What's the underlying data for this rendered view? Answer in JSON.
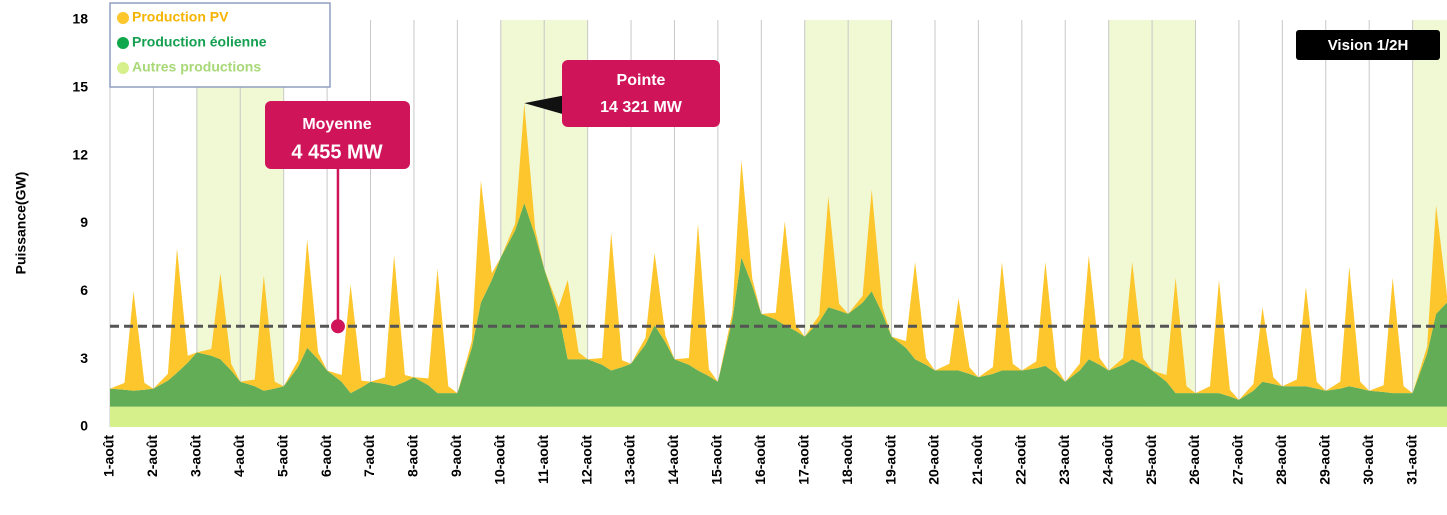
{
  "chart_data": {
    "type": "stacked_area",
    "y_label": "Puissance(GW)",
    "badge": "Vision 1/2H",
    "xlim": [
      1,
      31.792
    ],
    "ylim": [
      0,
      18
    ],
    "yticks": [
      0,
      3,
      6,
      9,
      12,
      15,
      18
    ],
    "xticks": [
      {
        "value": 1,
        "label": "1-août"
      },
      {
        "value": 2,
        "label": "2-août"
      },
      {
        "value": 3,
        "label": "3-août"
      },
      {
        "value": 4,
        "label": "4-août"
      },
      {
        "value": 5,
        "label": "5-août"
      },
      {
        "value": 6,
        "label": "6-août"
      },
      {
        "value": 7,
        "label": "7-août"
      },
      {
        "value": 8,
        "label": "8-août"
      },
      {
        "value": 9,
        "label": "9-août"
      },
      {
        "value": 10,
        "label": "10-août"
      },
      {
        "value": 11,
        "label": "11-août"
      },
      {
        "value": 12,
        "label": "12-août"
      },
      {
        "value": 13,
        "label": "13-août"
      },
      {
        "value": 14,
        "label": "14-août"
      },
      {
        "value": 15,
        "label": "15-août"
      },
      {
        "value": 16,
        "label": "16-août"
      },
      {
        "value": 17,
        "label": "17-août"
      },
      {
        "value": 18,
        "label": "18-août"
      },
      {
        "value": 19,
        "label": "19-août"
      },
      {
        "value": 20,
        "label": "20-août"
      },
      {
        "value": 21,
        "label": "21-août"
      },
      {
        "value": 22,
        "label": "22-août"
      },
      {
        "value": 23,
        "label": "23-août"
      },
      {
        "value": 24,
        "label": "24-août"
      },
      {
        "value": 25,
        "label": "25-août"
      },
      {
        "value": 26,
        "label": "26-août"
      },
      {
        "value": 27,
        "label": "27-août"
      },
      {
        "value": 28,
        "label": "28-août"
      },
      {
        "value": 29,
        "label": "29-août"
      },
      {
        "value": 30,
        "label": "30-août"
      },
      {
        "value": 31,
        "label": "31-août"
      }
    ],
    "x_grid": true,
    "shaded_ranges": [
      [
        3,
        5
      ],
      [
        10,
        12
      ],
      [
        17,
        19
      ],
      [
        24,
        26
      ],
      [
        31,
        31.792
      ]
    ],
    "shade_color": "#f0f8d4",
    "mean": {
      "label": "Moyenne",
      "value": 4.455,
      "value_label": "4 455 MW",
      "x": 6.25
    },
    "peak": {
      "label": "Pointe",
      "value": 14.321,
      "value_label": "14 321 MW",
      "x": 10.542
    },
    "x": [
      1,
      1.333,
      1.542,
      1.792,
      2,
      2.333,
      2.542,
      2.792,
      3,
      3.333,
      3.542,
      3.792,
      4,
      4.333,
      4.542,
      4.792,
      5,
      5.333,
      5.542,
      5.792,
      6,
      6.333,
      6.542,
      6.792,
      7,
      7.333,
      7.542,
      7.792,
      8,
      8.333,
      8.542,
      8.792,
      9,
      9.333,
      9.542,
      9.792,
      10,
      10.333,
      10.542,
      10.792,
      11,
      11.333,
      11.542,
      11.792,
      12,
      12.333,
      12.542,
      12.792,
      13,
      13.333,
      13.542,
      13.792,
      14,
      14.333,
      14.542,
      14.792,
      15,
      15.333,
      15.542,
      15.792,
      16,
      16.333,
      16.542,
      16.792,
      17,
      17.333,
      17.542,
      17.792,
      18,
      18.333,
      18.542,
      18.792,
      19,
      19.333,
      19.542,
      19.792,
      20,
      20.333,
      20.542,
      20.792,
      21,
      21.333,
      21.542,
      21.792,
      22,
      22.333,
      22.542,
      22.792,
      23,
      23.333,
      23.542,
      23.792,
      24,
      24.333,
      24.542,
      24.792,
      25,
      25.333,
      25.542,
      25.792,
      26,
      26.333,
      26.542,
      26.792,
      27,
      27.333,
      27.542,
      27.792,
      28,
      28.333,
      28.542,
      28.792,
      29,
      29.333,
      29.542,
      29.792,
      30,
      30.333,
      30.542,
      30.792,
      31,
      31.333,
      31.542,
      31.792
    ],
    "series": [
      {
        "name": "Production PV",
        "color": "#fcc62c",
        "text_color": "#f5b400",
        "values": [
          0,
          0.3,
          4.4,
          0.3,
          0,
          0.3,
          5.5,
          0.3,
          0,
          0.3,
          3.8,
          0.3,
          0,
          0.3,
          5.1,
          0.3,
          0,
          0.3,
          4.8,
          0.3,
          0,
          0.3,
          4.8,
          0.3,
          0,
          0.3,
          5.8,
          0.3,
          0,
          0.3,
          5.5,
          0.3,
          0,
          0.3,
          5.4,
          0.3,
          0,
          0.3,
          4.4,
          0.3,
          0,
          0.3,
          3.5,
          0.3,
          0,
          0.3,
          6.1,
          0.3,
          0,
          0.3,
          3.2,
          0.3,
          0,
          0.3,
          6.5,
          0.3,
          0,
          0.3,
          4.3,
          0.3,
          0,
          0.3,
          4.6,
          0.3,
          0,
          0.3,
          4.9,
          0.3,
          0,
          0.3,
          4.5,
          0.3,
          0,
          0.3,
          4.3,
          0.3,
          0,
          0.3,
          3.2,
          0.3,
          0,
          0.3,
          4.8,
          0.3,
          0,
          0.3,
          4.6,
          0.3,
          0,
          0.3,
          4.6,
          0.3,
          0,
          0.3,
          4.3,
          0.3,
          0,
          0.3,
          5.1,
          0.3,
          0,
          0.3,
          5.0,
          0.3,
          0,
          0.3,
          3.3,
          0.3,
          0,
          0.3,
          4.4,
          0.3,
          0,
          0.3,
          5.3,
          0.3,
          0,
          0.3,
          5.1,
          0.3,
          0,
          0.3,
          4.8,
          0.3
        ]
      },
      {
        "name": "Production éolienne",
        "color": "#62ad55",
        "text_color": "#14a050",
        "values": [
          0.8,
          0.75,
          0.7,
          0.75,
          0.8,
          1.15,
          1.5,
          1.95,
          2.4,
          2.25,
          2.1,
          1.6,
          1.1,
          0.9,
          0.7,
          0.8,
          0.9,
          1.75,
          2.6,
          2.1,
          1.6,
          1.1,
          0.6,
          0.85,
          1.1,
          1.0,
          0.9,
          1.1,
          1.3,
          0.95,
          0.6,
          0.6,
          0.6,
          2.6,
          4.6,
          5.6,
          6.6,
          7.8,
          9.0,
          7.55,
          6.1,
          4.1,
          2.1,
          2.1,
          2.1,
          1.85,
          1.6,
          1.75,
          1.9,
          2.75,
          3.6,
          2.85,
          2.1,
          1.85,
          1.6,
          1.35,
          1.1,
          3.85,
          6.6,
          5.35,
          4.1,
          3.85,
          3.6,
          3.35,
          3.1,
          3.75,
          4.4,
          4.25,
          4.1,
          4.6,
          5.1,
          4.1,
          3.1,
          2.6,
          2.1,
          1.85,
          1.6,
          1.6,
          1.6,
          1.45,
          1.3,
          1.45,
          1.6,
          1.6,
          1.6,
          1.7,
          1.8,
          1.45,
          1.1,
          1.6,
          2.1,
          1.85,
          1.6,
          1.85,
          2.1,
          1.85,
          1.6,
          1.1,
          0.6,
          0.6,
          0.6,
          0.6,
          0.6,
          0.45,
          0.3,
          0.7,
          1.1,
          1.0,
          0.9,
          0.9,
          0.9,
          0.8,
          0.7,
          0.8,
          0.9,
          0.8,
          0.7,
          0.65,
          0.6,
          0.6,
          0.6,
          2.35,
          4.1,
          4.6
        ]
      },
      {
        "name": "Autres productions",
        "color": "#d6f08c",
        "text_color": "#a8d878",
        "values": [
          0.9,
          0.9,
          0.9,
          0.9,
          0.9,
          0.9,
          0.9,
          0.9,
          0.9,
          0.9,
          0.9,
          0.9,
          0.9,
          0.9,
          0.9,
          0.9,
          0.9,
          0.9,
          0.9,
          0.9,
          0.9,
          0.9,
          0.9,
          0.9,
          0.9,
          0.9,
          0.9,
          0.9,
          0.9,
          0.9,
          0.9,
          0.9,
          0.9,
          0.9,
          0.9,
          0.9,
          0.9,
          0.9,
          0.9,
          0.9,
          0.9,
          0.9,
          0.9,
          0.9,
          0.9,
          0.9,
          0.9,
          0.9,
          0.9,
          0.9,
          0.9,
          0.9,
          0.9,
          0.9,
          0.9,
          0.9,
          0.9,
          0.9,
          0.9,
          0.9,
          0.9,
          0.9,
          0.9,
          0.9,
          0.9,
          0.9,
          0.9,
          0.9,
          0.9,
          0.9,
          0.9,
          0.9,
          0.9,
          0.9,
          0.9,
          0.9,
          0.9,
          0.9,
          0.9,
          0.9,
          0.9,
          0.9,
          0.9,
          0.9,
          0.9,
          0.9,
          0.9,
          0.9,
          0.9,
          0.9,
          0.9,
          0.9,
          0.9,
          0.9,
          0.9,
          0.9,
          0.9,
          0.9,
          0.9,
          0.9,
          0.9,
          0.9,
          0.9,
          0.9,
          0.9,
          0.9,
          0.9,
          0.9,
          0.9,
          0.9,
          0.9,
          0.9,
          0.9,
          0.9,
          0.9,
          0.9,
          0.9,
          0.9,
          0.9,
          0.9,
          0.9,
          0.9,
          0.9,
          0.9
        ]
      }
    ]
  }
}
